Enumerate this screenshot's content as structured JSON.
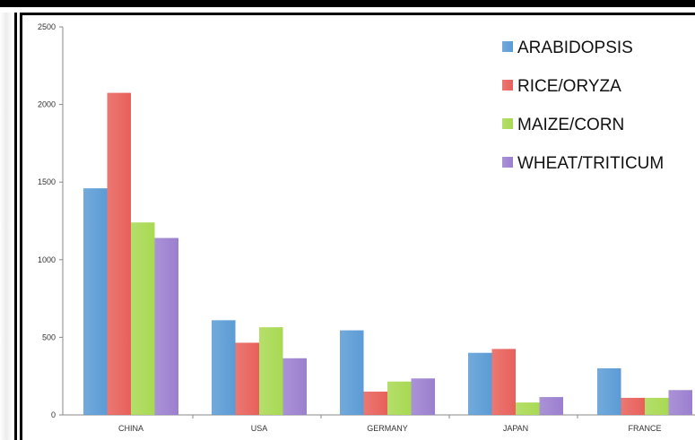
{
  "chart_data": {
    "type": "bar",
    "title": "",
    "xlabel": "",
    "ylabel": "",
    "ylim": [
      0,
      2500
    ],
    "yticks": [
      "0",
      "500",
      "1000",
      "1500",
      "2000",
      "2500"
    ],
    "categories": [
      "CHINA",
      "USA",
      "GERMANY",
      "JAPAN",
      "FRANCE"
    ],
    "grid": false,
    "legend_position": "top-right",
    "series": [
      {
        "name": "ARABIDOPSIS",
        "color": "#5b9bd5",
        "values": [
          1460,
          610,
          545,
          400,
          300
        ]
      },
      {
        "name": "RICE/ORYZA",
        "color": "#e8605a",
        "values": [
          2075,
          465,
          150,
          425,
          110
        ]
      },
      {
        "name": "MAIZE/CORN",
        "color": "#a8d952",
        "values": [
          1240,
          565,
          215,
          80,
          110
        ]
      },
      {
        "name": "WHEAT/TRITICUM",
        "color": "#9b7fcf",
        "values": [
          1140,
          365,
          235,
          115,
          160
        ]
      }
    ]
  }
}
